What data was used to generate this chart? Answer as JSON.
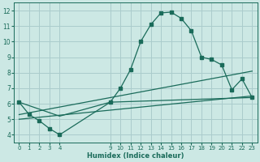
{
  "background_color": "#cce8e4",
  "grid_color": "#aacccc",
  "line_color": "#1a6b5a",
  "xlabel": "Humidex (Indice chaleur)",
  "xlim": [
    -0.5,
    23.5
  ],
  "ylim": [
    3.5,
    12.5
  ],
  "xticks": [
    0,
    1,
    2,
    3,
    4,
    9,
    10,
    11,
    12,
    13,
    14,
    15,
    16,
    17,
    18,
    19,
    20,
    21,
    22,
    23
  ],
  "yticks": [
    4,
    5,
    6,
    7,
    8,
    9,
    10,
    11,
    12
  ],
  "line1_x": [
    0,
    1,
    2,
    3,
    4,
    9,
    10,
    11,
    12,
    13,
    14,
    15,
    16,
    17,
    18,
    19,
    20,
    21,
    22,
    23
  ],
  "line1_y": [
    6.1,
    5.3,
    4.9,
    4.4,
    4.0,
    6.1,
    7.0,
    8.2,
    10.0,
    11.1,
    11.85,
    11.9,
    11.5,
    10.7,
    9.0,
    8.85,
    8.5,
    6.9,
    7.6,
    6.4
  ],
  "line2_x": [
    0,
    4,
    9,
    23
  ],
  "line2_y": [
    6.1,
    5.2,
    6.1,
    6.4
  ],
  "line3_x": [
    0,
    23
  ],
  "line3_y": [
    5.3,
    8.1
  ],
  "line4_x": [
    0,
    23
  ],
  "line4_y": [
    5.0,
    6.5
  ]
}
